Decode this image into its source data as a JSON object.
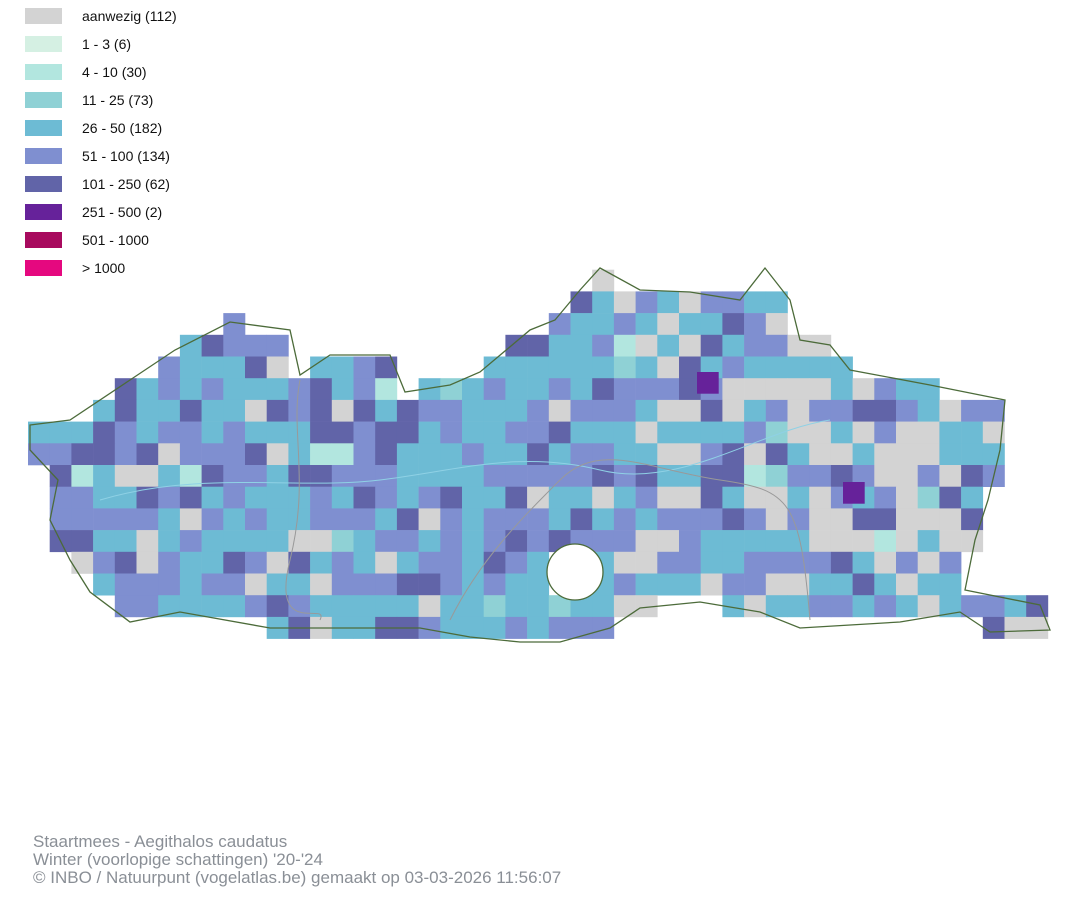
{
  "legend": {
    "items": [
      {
        "label": "aanwezig (112)",
        "color": "#d3d3d3"
      },
      {
        "label": "1 - 3 (6)",
        "color": "#d5f0e3"
      },
      {
        "label": "4 - 10 (30)",
        "color": "#b2e6df"
      },
      {
        "label": "11 - 25 (73)",
        "color": "#8fd1d5"
      },
      {
        "label": "26 - 50 (182)",
        "color": "#6dbbd4"
      },
      {
        "label": "51 - 100 (134)",
        "color": "#7f8fd0"
      },
      {
        "label": "101 - 250 (62)",
        "color": "#6164a8"
      },
      {
        "label": "251 - 500 (2)",
        "color": "#66229a"
      },
      {
        "label": "501 - 1000",
        "color": "#a80a5e"
      },
      {
        "label": "> 1000",
        "color": "#e5087f"
      }
    ]
  },
  "footer": {
    "lines": [
      "Staartmees - Aegithalos caudatus",
      "Winter (voorlopige schattingen) '20-'24",
      "© INBO / Natuurpunt (vogelatlas.be) gemaakt op 03-03-2026 11:56:07"
    ]
  }
}
